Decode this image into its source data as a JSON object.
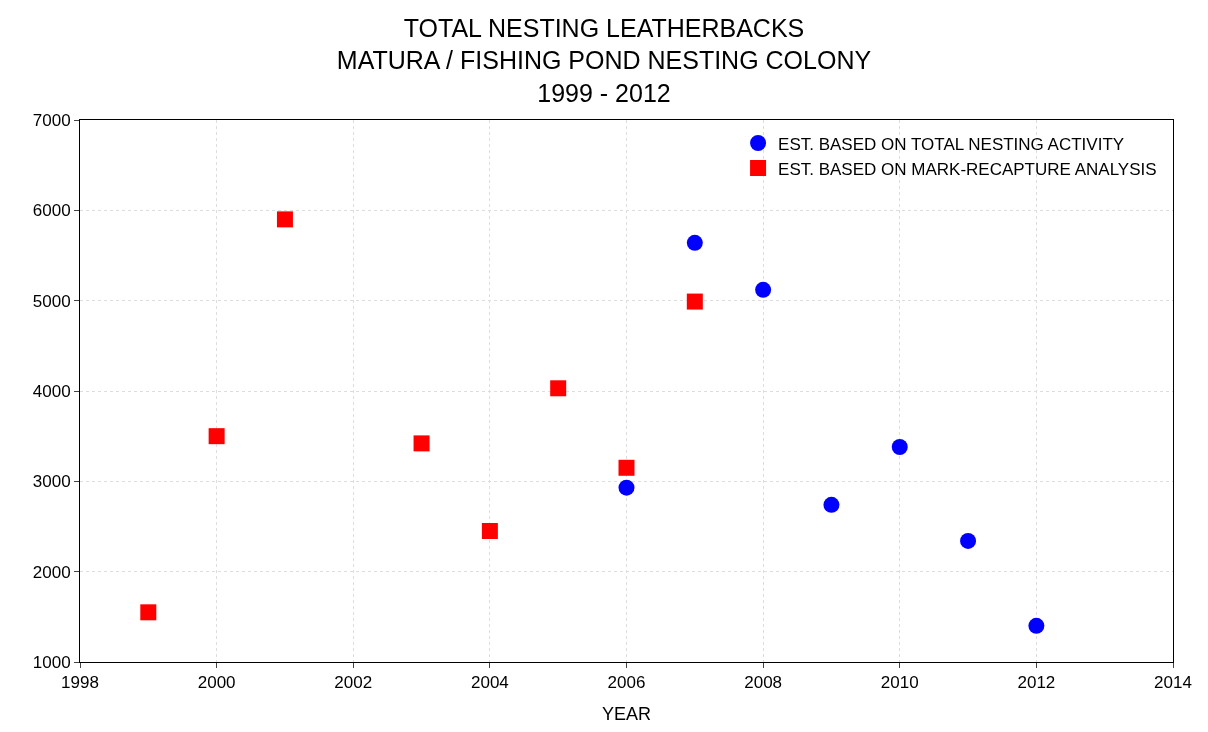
{
  "chart_data": {
    "type": "scatter",
    "title": "TOTAL NESTING LEATHERBACKS\nMATURA / FISHING POND NESTING COLONY\n1999 - 2012",
    "xlabel": "YEAR",
    "xlim": [
      1998,
      2014
    ],
    "xticks": [
      1998,
      2000,
      2002,
      2004,
      2006,
      2008,
      2010,
      2012,
      2014
    ],
    "ylim": [
      1000,
      7000
    ],
    "yticks": [
      1000,
      2000,
      3000,
      4000,
      5000,
      6000,
      7000
    ],
    "grid": true,
    "legend": "top right",
    "series": [
      {
        "name": "EST. BASED ON TOTAL NESTING ACTIVITY",
        "color": "#0000ff",
        "marker": "circle",
        "x": [
          2006,
          2007,
          2008,
          2009,
          2010,
          2011,
          2012
        ],
        "values": [
          2930,
          5640,
          5120,
          2740,
          3380,
          2340,
          1400
        ]
      },
      {
        "name": "EST. BASED ON MARK-RECAPTURE ANALYSIS",
        "color": "#ff0000",
        "marker": "square",
        "x": [
          1999,
          2000,
          2001,
          2003,
          2004,
          2005,
          2006,
          2007
        ],
        "values": [
          1550,
          3500,
          5900,
          3420,
          2450,
          4030,
          3150,
          4990
        ]
      }
    ]
  }
}
